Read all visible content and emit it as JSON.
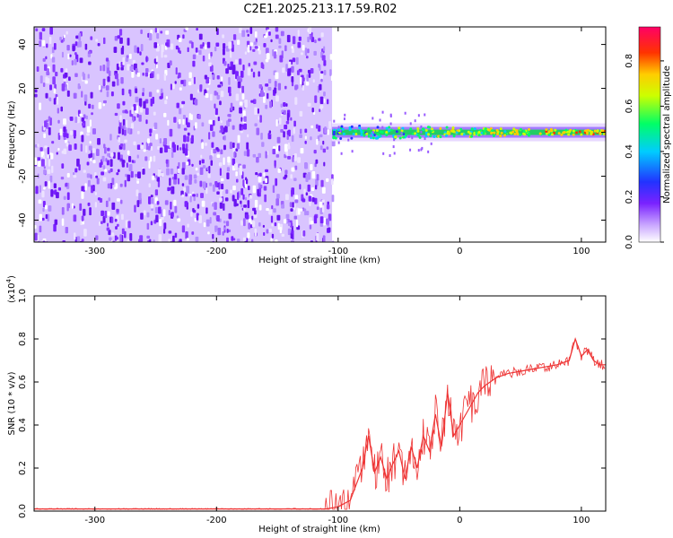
{
  "title": "C2E1.2025.213.17.59.R02",
  "chart_data": [
    {
      "type": "heatmap",
      "xlabel": "Height of straight line (km)",
      "ylabel": "Frequency (Hz)",
      "xlim": [
        -350,
        120
      ],
      "ylim": [
        -50,
        48
      ],
      "xticks": [
        "-300",
        "-200",
        "-100",
        "0",
        "100"
      ],
      "xtick_values": [
        -300,
        -200,
        -100,
        0,
        100
      ],
      "yticks": [
        "-40",
        "-20",
        "0",
        "20",
        "40"
      ],
      "ytick_values": [
        -40,
        -20,
        0,
        20,
        40
      ],
      "noise_region_x": [
        -350,
        -105
      ],
      "signal_band_center_hz": 0,
      "colorbar": {
        "label": "Normalized spectral amplitude",
        "range": [
          0,
          0.95
        ],
        "ticks": [
          "0.0",
          "0.2",
          "0.4",
          "0.6",
          "0.8"
        ],
        "tick_values": [
          0.0,
          0.2,
          0.4,
          0.6,
          0.8
        ]
      }
    },
    {
      "type": "line",
      "xlabel": "Height of straight line (km)",
      "ylabel": "SNR (10 * v/v)",
      "scale_label": "(x10",
      "scale_exp": "4",
      "scale_close": ")",
      "xlim": [
        -350,
        120
      ],
      "ylim": [
        0,
        1.0
      ],
      "xticks": [
        "-300",
        "-200",
        "-100",
        "0",
        "100"
      ],
      "xtick_values": [
        -300,
        -200,
        -100,
        0,
        100
      ],
      "yticks": [
        "0.0",
        "0.2",
        "0.4",
        "0.6",
        "0.8",
        "1.0"
      ],
      "ytick_values": [
        0.0,
        0.2,
        0.4,
        0.6,
        0.8,
        1.0
      ],
      "series": [
        {
          "color": "#ee3333",
          "x": [
            -350,
            -300,
            -250,
            -200,
            -150,
            -110,
            -100,
            -90,
            -80,
            -75,
            -70,
            -65,
            -60,
            -55,
            -50,
            -45,
            -40,
            -35,
            -30,
            -25,
            -20,
            -15,
            -10,
            -5,
            0,
            5,
            10,
            15,
            20,
            25,
            30,
            40,
            50,
            60,
            70,
            80,
            90,
            95,
            100,
            105,
            110,
            115,
            120
          ],
          "y": [
            0.01,
            0.01,
            0.01,
            0.01,
            0.01,
            0.01,
            0.02,
            0.05,
            0.2,
            0.35,
            0.18,
            0.25,
            0.15,
            0.22,
            0.28,
            0.15,
            0.3,
            0.2,
            0.35,
            0.28,
            0.45,
            0.3,
            0.55,
            0.35,
            0.4,
            0.45,
            0.5,
            0.55,
            0.58,
            0.6,
            0.62,
            0.64,
            0.65,
            0.66,
            0.67,
            0.68,
            0.7,
            0.8,
            0.72,
            0.75,
            0.7,
            0.68,
            0.68
          ]
        }
      ]
    }
  ]
}
